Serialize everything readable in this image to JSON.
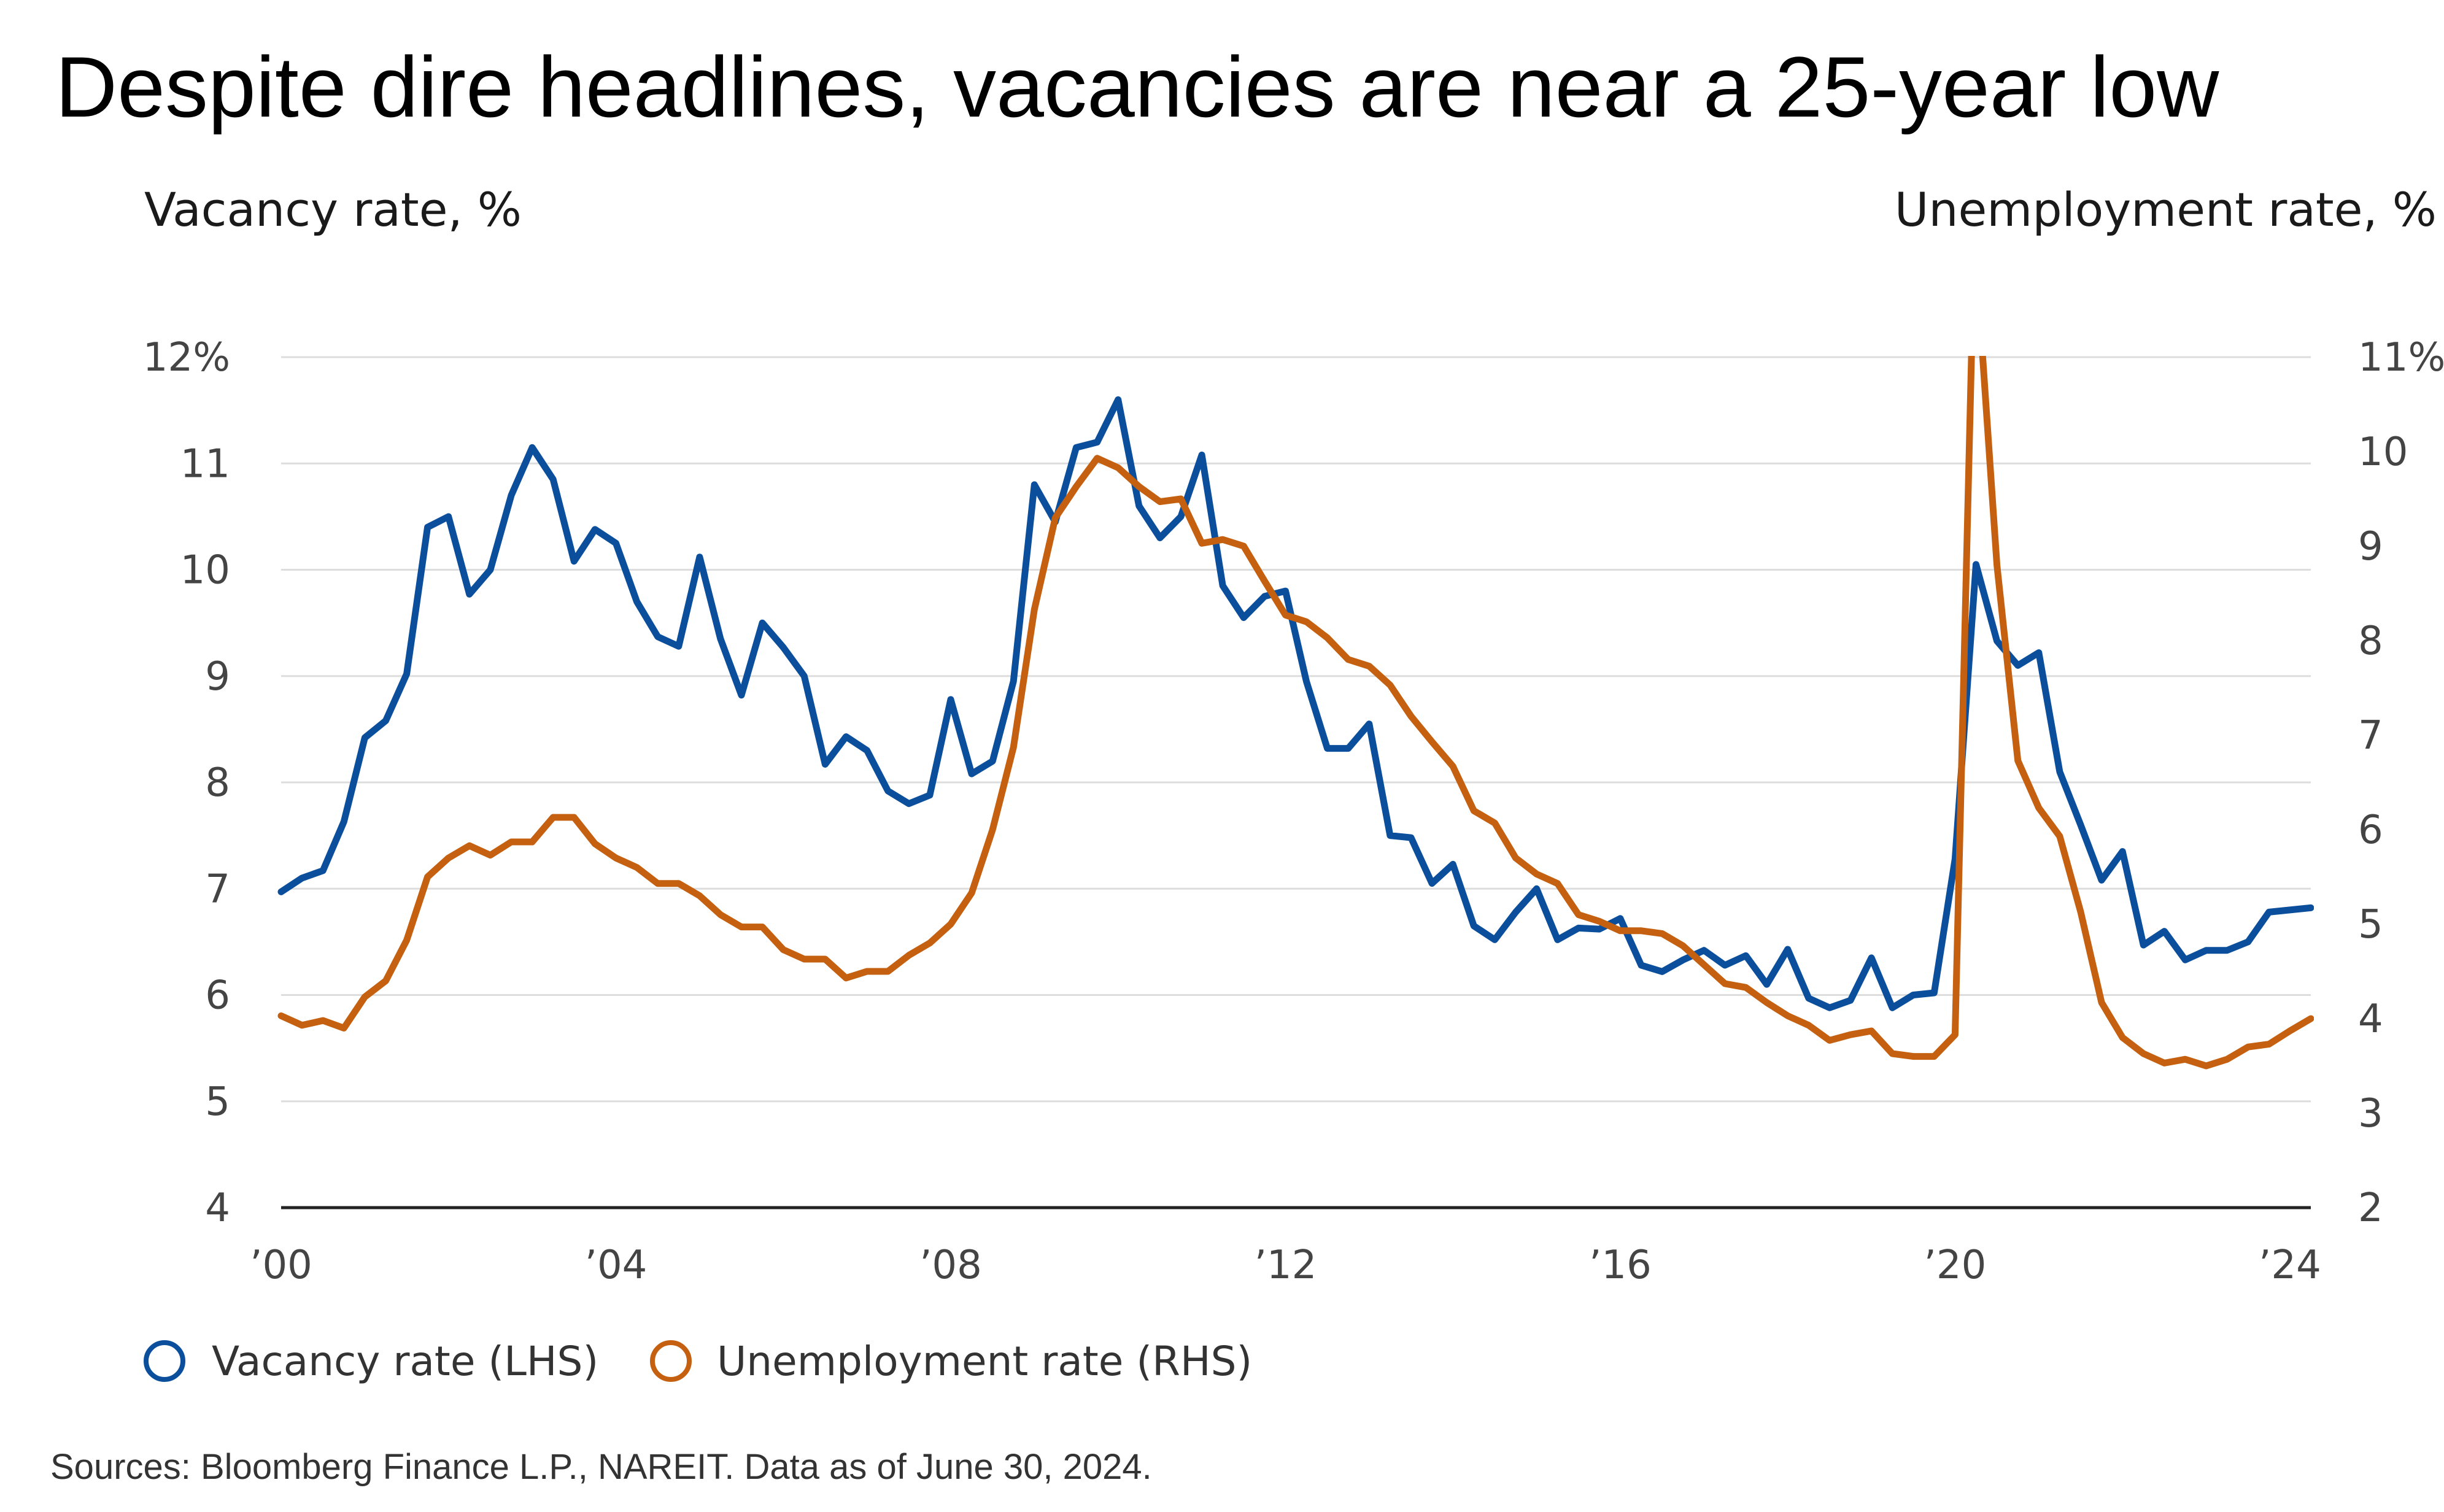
{
  "colors": {
    "vacancy": "#0b4f9c",
    "unemployment": "#c4600f",
    "grid": "#dddddd",
    "axis": "#222222"
  },
  "chart_data": {
    "type": "line",
    "title": "Despite dire headlines, vacancies are near a 25-year low",
    "ylabel_left": "Vacancy rate, %",
    "ylabel_right": "Unemployment rate, %",
    "left_ticks": [
      "12%",
      "11",
      "10",
      "9",
      "8",
      "7",
      "6",
      "5",
      "4"
    ],
    "right_ticks": [
      "11%",
      "10",
      "9",
      "8",
      "7",
      "6",
      "5",
      "4",
      "3",
      "2"
    ],
    "x_ticks": [
      "’00",
      "’04",
      "’08",
      "’12",
      "’16",
      "’20",
      "’24"
    ],
    "ylim_left": [
      4,
      12
    ],
    "ylim_right": [
      2,
      11
    ],
    "xlim": [
      2000,
      2024.25
    ],
    "grid": true,
    "legend_position": "bottom-left",
    "series": [
      {
        "name": "Vacancy rate (LHS)",
        "axis": "left",
        "x": [
          2000,
          2000.25,
          2000.5,
          2000.75,
          2001,
          2001.25,
          2001.5,
          2001.75,
          2002,
          2002.25,
          2002.5,
          2002.75,
          2003,
          2003.25,
          2003.5,
          2003.75,
          2004,
          2004.25,
          2004.5,
          2004.75,
          2005,
          2005.25,
          2005.5,
          2005.75,
          2006,
          2006.25,
          2006.5,
          2006.75,
          2007,
          2007.25,
          2007.5,
          2007.75,
          2008,
          2008.25,
          2008.5,
          2008.75,
          2009,
          2009.25,
          2009.5,
          2009.75,
          2010,
          2010.25,
          2010.5,
          2010.75,
          2011,
          2011.25,
          2011.5,
          2011.75,
          2012,
          2012.25,
          2012.5,
          2012.75,
          2013,
          2013.25,
          2013.5,
          2013.75,
          2014,
          2014.25,
          2014.5,
          2014.75,
          2015,
          2015.25,
          2015.5,
          2015.75,
          2016,
          2016.25,
          2016.5,
          2016.75,
          2017,
          2017.25,
          2017.5,
          2017.75,
          2018,
          2018.25,
          2018.5,
          2018.75,
          2019,
          2019.25,
          2019.5,
          2019.75,
          2020,
          2020.25,
          2020.5,
          2020.75,
          2021,
          2021.25,
          2021.5,
          2021.75,
          2022,
          2022.25,
          2022.5,
          2022.75,
          2023,
          2023.25,
          2023.5,
          2023.75,
          2024,
          2024.25
        ],
        "values": [
          6.97,
          7.1,
          7.17,
          7.63,
          8.42,
          8.58,
          9.02,
          10.4,
          10.5,
          9.77,
          10.0,
          10.7,
          11.15,
          10.85,
          10.08,
          10.38,
          10.25,
          9.7,
          9.37,
          9.28,
          10.12,
          9.35,
          8.82,
          9.5,
          9.27,
          9.0,
          8.17,
          8.43,
          8.3,
          7.92,
          7.8,
          7.88,
          8.78,
          8.08,
          8.2,
          8.95,
          10.8,
          10.45,
          11.15,
          11.2,
          11.6,
          10.6,
          10.3,
          10.5,
          11.08,
          9.85,
          9.55,
          9.75,
          9.8,
          8.95,
          8.32,
          8.32,
          8.55,
          7.5,
          7.48,
          7.05,
          7.23,
          6.65,
          6.52,
          6.78,
          7.0,
          6.52,
          6.63,
          6.62,
          6.72,
          6.28,
          6.22,
          6.33,
          6.42,
          6.28,
          6.37,
          6.1,
          6.43,
          5.97,
          5.88,
          5.95,
          6.35,
          5.88,
          6.0,
          6.02,
          7.28,
          10.05,
          9.33,
          9.1,
          9.22,
          8.1,
          7.6,
          7.08,
          7.35,
          6.47,
          6.6,
          6.33,
          6.42,
          6.42,
          6.5,
          6.78,
          6.8,
          6.82
        ]
      },
      {
        "name": "Unemployment rate (RHS)",
        "axis": "right",
        "x": [
          2000,
          2000.25,
          2000.5,
          2000.75,
          2001,
          2001.25,
          2001.5,
          2001.75,
          2002,
          2002.25,
          2002.5,
          2002.75,
          2003,
          2003.25,
          2003.5,
          2003.75,
          2004,
          2004.25,
          2004.5,
          2004.75,
          2005,
          2005.25,
          2005.5,
          2005.75,
          2006,
          2006.25,
          2006.5,
          2006.75,
          2007,
          2007.25,
          2007.5,
          2007.75,
          2008,
          2008.25,
          2008.5,
          2008.75,
          2009,
          2009.25,
          2009.5,
          2009.75,
          2010,
          2010.25,
          2010.5,
          2010.75,
          2011,
          2011.25,
          2011.5,
          2011.75,
          2012,
          2012.25,
          2012.5,
          2012.75,
          2013,
          2013.25,
          2013.5,
          2013.75,
          2014,
          2014.25,
          2014.5,
          2014.75,
          2015,
          2015.25,
          2015.5,
          2015.75,
          2016,
          2016.25,
          2016.5,
          2016.75,
          2017,
          2017.25,
          2017.5,
          2017.75,
          2018,
          2018.25,
          2018.5,
          2018.75,
          2019,
          2019.25,
          2019.5,
          2019.75,
          2020,
          2020.25,
          2020.33,
          2020.5,
          2020.75,
          2021,
          2021.25,
          2021.5,
          2021.75,
          2022,
          2022.25,
          2022.5,
          2022.75,
          2023,
          2023.25,
          2023.5,
          2023.75,
          2024,
          2024.25
        ],
        "values": [
          4.03,
          3.93,
          3.98,
          3.9,
          4.23,
          4.4,
          4.83,
          5.5,
          5.7,
          5.83,
          5.73,
          5.87,
          5.87,
          6.13,
          6.13,
          5.85,
          5.7,
          5.6,
          5.43,
          5.43,
          5.3,
          5.1,
          4.97,
          4.97,
          4.73,
          4.63,
          4.63,
          4.43,
          4.5,
          4.5,
          4.67,
          4.8,
          5.0,
          5.33,
          6.0,
          6.87,
          8.33,
          9.3,
          9.63,
          9.93,
          9.83,
          9.63,
          9.47,
          9.5,
          9.03,
          9.07,
          9.0,
          8.63,
          8.27,
          8.2,
          8.03,
          7.8,
          7.73,
          7.53,
          7.2,
          6.93,
          6.67,
          6.2,
          6.07,
          5.7,
          5.53,
          5.43,
          5.1,
          5.03,
          4.93,
          4.93,
          4.9,
          4.77,
          4.57,
          4.37,
          4.33,
          4.17,
          4.03,
          3.93,
          3.77,
          3.83,
          3.87,
          3.63,
          3.6,
          3.6,
          3.83,
          13.0,
          11.0,
          8.8,
          6.73,
          6.23,
          5.93,
          5.13,
          4.17,
          3.8,
          3.63,
          3.53,
          3.57,
          3.5,
          3.57,
          3.7,
          3.73,
          3.87,
          4.0
        ]
      }
    ],
    "source": "Sources: Bloomberg Finance L.P., NAREIT. Data as of June 30, 2024."
  }
}
